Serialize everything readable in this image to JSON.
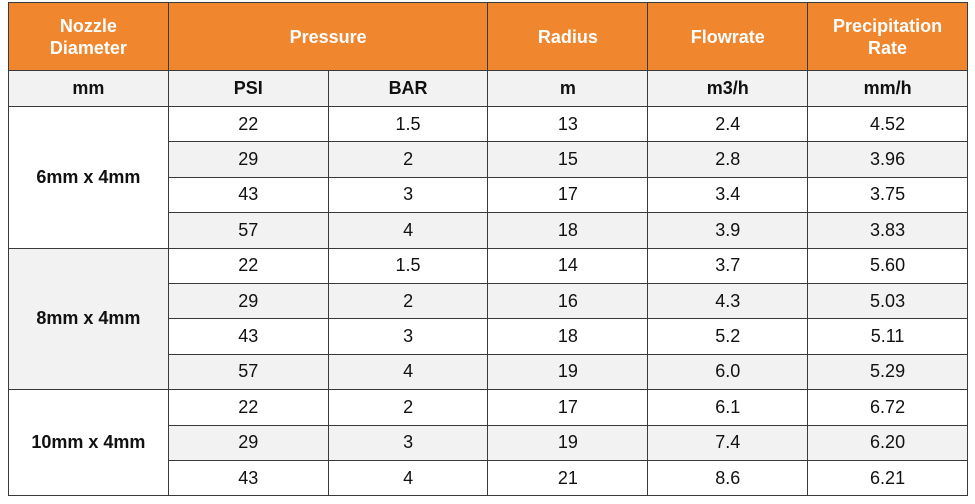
{
  "header": {
    "nozzle": "Nozzle Diameter",
    "pressure": "Pressure",
    "radius": "Radius",
    "flowrate": "Flowrate",
    "precipitation": "Precipitation Rate"
  },
  "units": [
    "mm",
    "PSI",
    "BAR",
    "m",
    "m3/h",
    "mm/h"
  ],
  "groups": [
    {
      "label": "6mm x 4mm",
      "rows": [
        [
          "22",
          "1.5",
          "13",
          "2.4",
          "4.52"
        ],
        [
          "29",
          "2",
          "15",
          "2.8",
          "3.96"
        ],
        [
          "43",
          "3",
          "17",
          "3.4",
          "3.75"
        ],
        [
          "57",
          "4",
          "18",
          "3.9",
          "3.83"
        ]
      ]
    },
    {
      "label": "8mm x 4mm",
      "rows": [
        [
          "22",
          "1.5",
          "14",
          "3.7",
          "5.60"
        ],
        [
          "29",
          "2",
          "16",
          "4.3",
          "5.03"
        ],
        [
          "43",
          "3",
          "18",
          "5.2",
          "5.11"
        ],
        [
          "57",
          "4",
          "19",
          "6.0",
          "5.29"
        ]
      ]
    },
    {
      "label": "10mm x 4mm",
      "rows": [
        [
          "22",
          "2",
          "17",
          "6.1",
          "6.72"
        ],
        [
          "29",
          "3",
          "19",
          "7.4",
          "6.20"
        ],
        [
          "43",
          "4",
          "21",
          "8.6",
          "6.21"
        ]
      ]
    }
  ]
}
